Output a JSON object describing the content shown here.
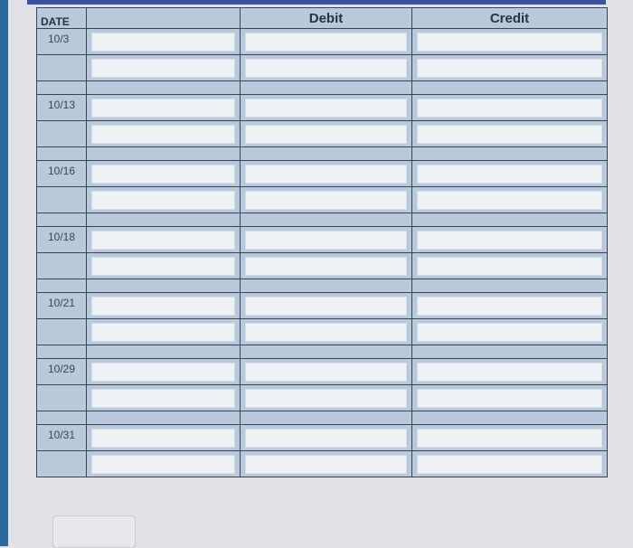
{
  "table": {
    "headers": {
      "date": "DATE",
      "account": "",
      "debit": "Debit",
      "credit": "Credit"
    },
    "entries": [
      {
        "date": "10/3"
      },
      {
        "date": "10/13"
      },
      {
        "date": "10/16"
      },
      {
        "date": "10/18"
      },
      {
        "date": "10/21"
      },
      {
        "date": "10/29"
      },
      {
        "date": "10/31"
      }
    ]
  },
  "colors": {
    "header_cell": "#b9c9dc",
    "input_bg": "#eef1f5",
    "border": "#3a4452"
  }
}
